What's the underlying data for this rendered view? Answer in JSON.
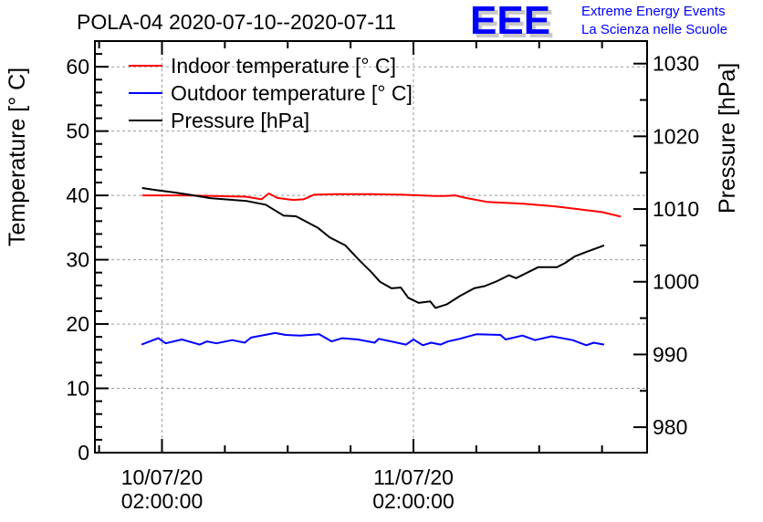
{
  "chart_data": {
    "type": "line",
    "title": "POLA-04 2020-07-10--2020-07-11",
    "xlabel": "",
    "ylabel": "Temperature [° C]",
    "y2label": "Pressure [hPa]",
    "x_unit": "hours since 10/07/20 02:00:00",
    "xlim": [
      -6.4,
      46.3
    ],
    "ylim": [
      0,
      64
    ],
    "y2lim": [
      976.5,
      1033.1
    ],
    "grid": true,
    "legend_position": "top-left",
    "x_ticks": [
      {
        "hours": 0,
        "label_line1": "10/07/20",
        "label_line2": "02:00:00"
      },
      {
        "hours": 24,
        "label_line1": "11/07/20",
        "label_line2": "02:00:00"
      }
    ],
    "y_ticks": [
      0,
      10,
      20,
      30,
      40,
      50,
      60
    ],
    "y2_ticks": [
      980,
      990,
      1000,
      1010,
      1020,
      1030
    ],
    "series": [
      {
        "name": "Indoor temperature [° C]",
        "axis": "left",
        "color": "#ff0000",
        "x": [
          -1.9,
          2.0,
          5.0,
          8.0,
          9.5,
          10.2,
          11.0,
          12.5,
          13.5,
          14.5,
          16.5,
          20.0,
          23.0,
          26.0,
          27.0,
          28.0,
          29.0,
          31.0,
          34.5,
          37.5,
          40.0,
          42.0,
          43.8
        ],
        "values": [
          40.0,
          40.0,
          39.9,
          39.8,
          39.4,
          40.3,
          39.6,
          39.3,
          39.4,
          40.1,
          40.2,
          40.2,
          40.1,
          39.9,
          39.9,
          40.0,
          39.6,
          39.0,
          38.7,
          38.3,
          37.8,
          37.4,
          36.7
        ]
      },
      {
        "name": "Outdoor temperature [° C]",
        "axis": "left",
        "color": "#0000ff",
        "x": [
          -1.95,
          -0.35,
          0.35,
          1.9,
          3.6,
          4.3,
          5.2,
          6.7,
          7.9,
          8.5,
          10.8,
          11.8,
          13.2,
          15.0,
          16.2,
          17.2,
          18.7,
          20.3,
          20.7,
          23.3,
          24.0,
          24.9,
          25.7,
          26.6,
          27.3,
          28.4,
          30.0,
          32.3,
          32.8,
          34.4,
          35.6,
          37.2,
          39.2,
          40.5,
          41.2,
          42.2
        ],
        "values": [
          16.8,
          17.8,
          17.0,
          17.6,
          16.8,
          17.3,
          17.0,
          17.5,
          17.1,
          17.9,
          18.6,
          18.3,
          18.2,
          18.4,
          17.3,
          17.8,
          17.6,
          17.1,
          17.7,
          16.8,
          17.6,
          16.7,
          17.1,
          16.8,
          17.3,
          17.7,
          18.4,
          18.3,
          17.6,
          18.2,
          17.5,
          18.1,
          17.5,
          16.7,
          17.1,
          16.8
        ]
      },
      {
        "name": "Pressure [hPa]",
        "axis": "right",
        "color": "#000000",
        "x": [
          -1.9,
          -0.6,
          1.1,
          2.9,
          4.6,
          6.4,
          8.1,
          9.9,
          11.6,
          12.8,
          14.9,
          16.0,
          17.5,
          18.8,
          20.0,
          20.8,
          21.9,
          22.8,
          23.5,
          24.5,
          25.6,
          26.1,
          27.2,
          28.5,
          29.8,
          30.8,
          32.0,
          33.1,
          33.8,
          35.9,
          37.7,
          38.5,
          39.4,
          40.5,
          42.2
        ],
        "values": [
          1012.9,
          1012.6,
          1012.3,
          1011.9,
          1011.5,
          1011.3,
          1011.1,
          1010.6,
          1009.1,
          1009.0,
          1007.4,
          1006.1,
          1005.0,
          1003.0,
          1001.3,
          1000.0,
          999.1,
          999.2,
          997.8,
          997.1,
          997.3,
          996.4,
          996.9,
          998.1,
          999.1,
          999.4,
          1000.1,
          1000.9,
          1000.5,
          1002.0,
          1002.0,
          1002.6,
          1003.5,
          1004.1,
          1005.0
        ]
      }
    ]
  },
  "logo": {
    "mark": "EEE",
    "line1": "Extreme Energy Events",
    "line2": "La Scienza nelle Scuole",
    "color": "#0000ff"
  }
}
